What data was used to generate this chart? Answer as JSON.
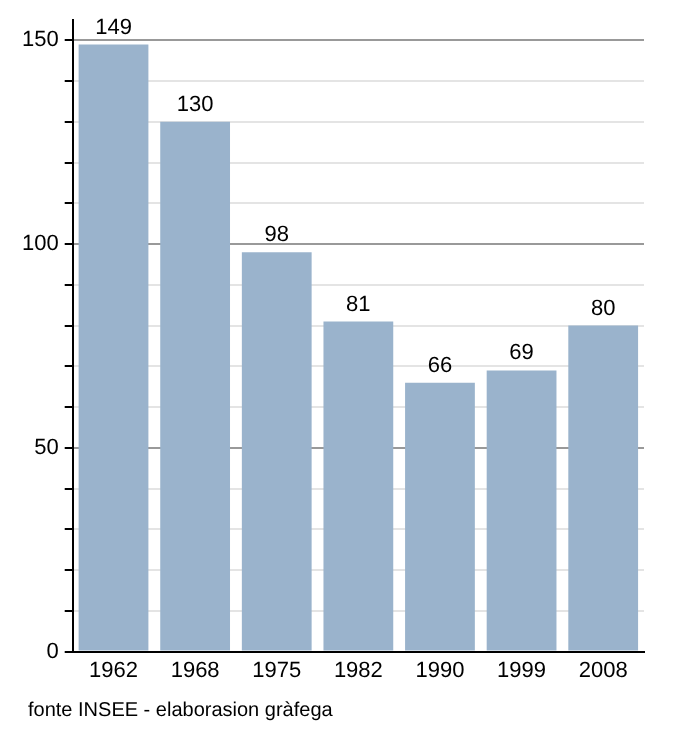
{
  "chart_data": {
    "type": "bar",
    "categories": [
      "1962",
      "1968",
      "1975",
      "1982",
      "1990",
      "1999",
      "2008"
    ],
    "values": [
      149,
      130,
      98,
      81,
      66,
      69,
      80
    ],
    "color": "#9ab3cc",
    "ylim": [
      0,
      155
    ],
    "yticks": [
      0,
      {
        "value": 10,
        "label": null
      },
      {
        "value": 20,
        "label": null
      },
      {
        "value": 30,
        "label": null
      },
      {
        "value": 40,
        "label": null
      },
      50,
      {
        "value": 60,
        "label": null
      },
      {
        "value": 70,
        "label": null
      },
      {
        "value": 80,
        "label": null
      },
      {
        "value": 90,
        "label": null
      },
      100,
      {
        "value": 110,
        "label": null
      },
      {
        "value": 120,
        "label": null
      },
      {
        "value": 130,
        "label": null
      },
      {
        "value": 140,
        "label": null
      },
      150
    ],
    "grid": "y",
    "legend": false,
    "data_labels": true,
    "annotations": [
      "fonte INSEE - elaborasion gràfega"
    ]
  }
}
